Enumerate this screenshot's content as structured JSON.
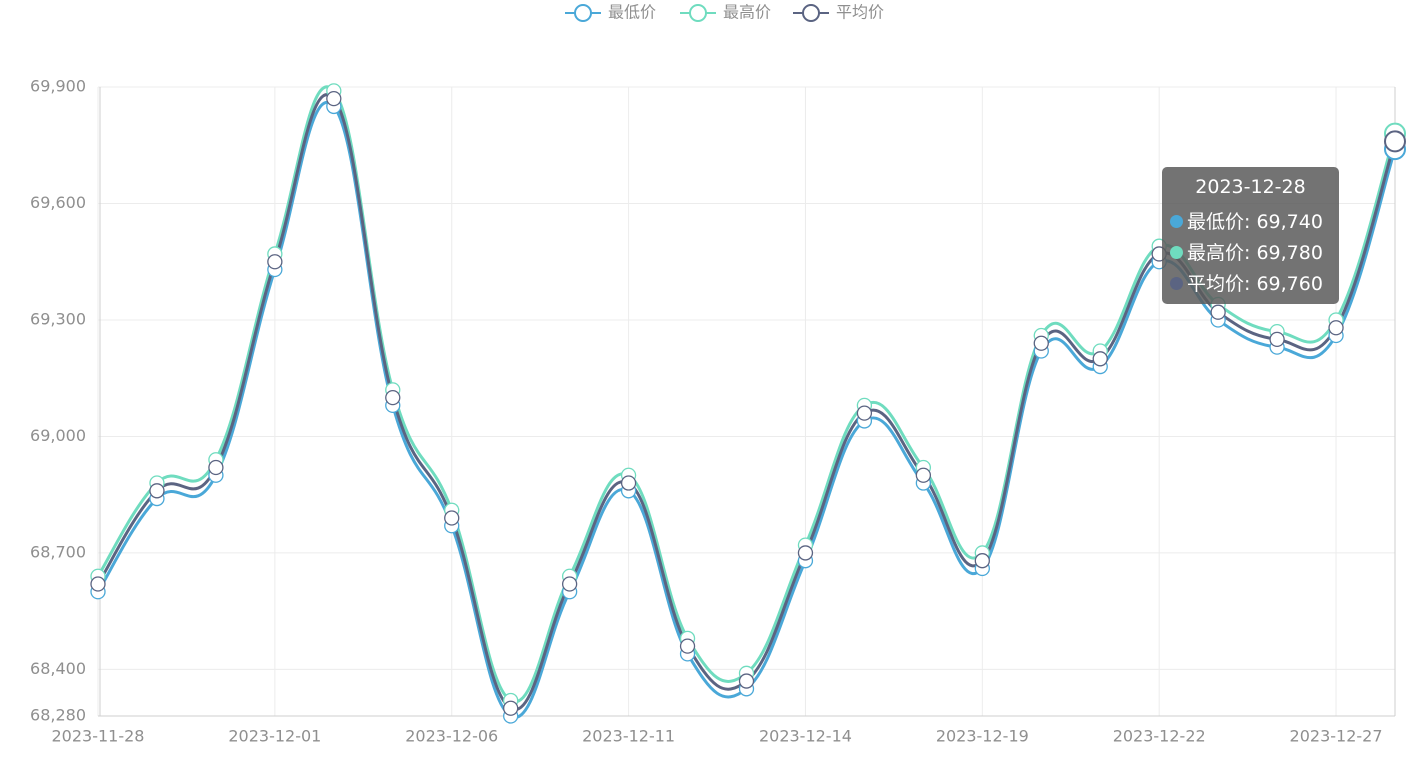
{
  "chart_data": {
    "type": "line",
    "categories": [
      "2023-11-28",
      null,
      null,
      "2023-12-01",
      null,
      null,
      "2023-12-06",
      null,
      null,
      "2023-12-11",
      null,
      null,
      "2023-12-14",
      null,
      null,
      "2023-12-19",
      null,
      null,
      "2023-12-22",
      null,
      null,
      "2023-12-27",
      "2023-12-28"
    ],
    "series": [
      {
        "name": "最低价",
        "color": "#4aa8d8",
        "values": [
          68600,
          68840,
          68900,
          69430,
          69850,
          69080,
          68770,
          68280,
          68600,
          68860,
          68440,
          68350,
          68680,
          69040,
          68880,
          68660,
          69220,
          69180,
          69450,
          69300,
          69230,
          69260,
          69740
        ],
        "value_labels": [
          null,
          null,
          null,
          null,
          null,
          null,
          null,
          null,
          null,
          null,
          null,
          null,
          null,
          null,
          null,
          null,
          null,
          null,
          null,
          null,
          null,
          null,
          "69,740"
        ]
      },
      {
        "name": "最高价",
        "color": "#6fdcbf",
        "values": [
          68640,
          68880,
          68940,
          69470,
          69890,
          69120,
          68810,
          68320,
          68640,
          68900,
          68480,
          68390,
          68720,
          69080,
          68920,
          68700,
          69260,
          69220,
          69490,
          69340,
          69270,
          69300,
          69780
        ],
        "value_labels": [
          null,
          null,
          null,
          null,
          null,
          null,
          null,
          null,
          null,
          null,
          null,
          null,
          null,
          null,
          null,
          null,
          null,
          null,
          null,
          null,
          null,
          null,
          "69,780"
        ]
      },
      {
        "name": "平均价",
        "color": "#5b6482",
        "values": [
          68620,
          68860,
          68920,
          69450,
          69870,
          69100,
          68790,
          68300,
          68620,
          68880,
          68460,
          68370,
          68700,
          69060,
          68900,
          68680,
          69240,
          69200,
          69470,
          69320,
          69250,
          69280,
          69760
        ],
        "value_labels": [
          null,
          null,
          null,
          null,
          null,
          null,
          null,
          null,
          null,
          null,
          null,
          null,
          null,
          null,
          null,
          null,
          null,
          null,
          null,
          null,
          null,
          null,
          "69,760"
        ]
      }
    ],
    "ylim": [
      68280,
      69900
    ],
    "yticks": [
      {
        "value": 68280,
        "label": "68,280"
      },
      {
        "value": 68400,
        "label": "68,400"
      },
      {
        "value": 68700,
        "label": "68,700"
      },
      {
        "value": 69000,
        "label": "69,000"
      },
      {
        "value": 69300,
        "label": "69,300"
      },
      {
        "value": 69600,
        "label": "69,600"
      },
      {
        "value": 69900,
        "label": "69,900"
      }
    ],
    "grid": true,
    "smooth": true,
    "legend": "top",
    "tooltip_index": 22
  }
}
